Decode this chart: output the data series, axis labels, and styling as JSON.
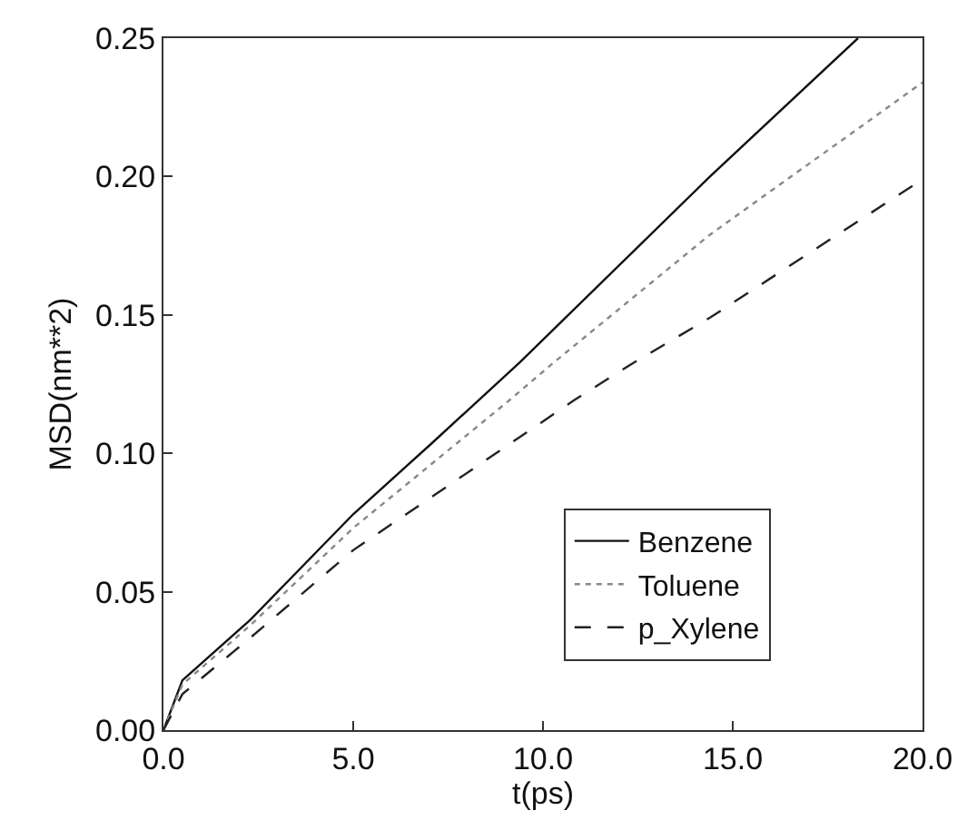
{
  "chart_data": {
    "type": "line",
    "xlabel": "t(ps)",
    "ylabel": "MSD(nm**2)",
    "series": [
      {
        "name": "Benzene",
        "color": "#111111",
        "line_style": "solid",
        "x": [
          0,
          0.5,
          2.3,
          5.0,
          7.1,
          9.4,
          14.4,
          18.3
        ],
        "values": [
          0,
          0.018,
          0.04,
          0.078,
          0.104,
          0.133,
          0.2,
          0.25
        ]
      },
      {
        "name": "Toluene",
        "color": "#888888",
        "line_style": "dotted",
        "x": [
          0,
          0.5,
          2.3,
          5.0,
          9.1,
          10.3,
          14.4,
          20.0
        ],
        "values": [
          0,
          0.0165,
          0.038,
          0.073,
          0.119,
          0.133,
          0.179,
          0.234
        ]
      },
      {
        "name": "p_Xylene",
        "color": "#222222",
        "line_style": "dashed",
        "x": [
          0,
          0.5,
          2.3,
          5.0,
          10.8,
          12.3,
          14.4,
          20.0
        ],
        "values": [
          0,
          0.013,
          0.0335,
          0.065,
          0.119,
          0.132,
          0.149,
          0.199
        ]
      }
    ],
    "xlim": [
      0,
      20
    ],
    "ylim": [
      0,
      0.25
    ],
    "xticks": [
      {
        "value": 0,
        "label": "0.0"
      },
      {
        "value": 5,
        "label": "5.0"
      },
      {
        "value": 10,
        "label": "10.0"
      },
      {
        "value": 15,
        "label": "15.0"
      },
      {
        "value": 20,
        "label": "20.0"
      }
    ],
    "yticks": [
      {
        "value": 0,
        "label": "0.00"
      },
      {
        "value": 0.05,
        "label": "0.05"
      },
      {
        "value": 0.1,
        "label": "0.10"
      },
      {
        "value": 0.15,
        "label": "0.15"
      },
      {
        "value": 0.2,
        "label": "0.20"
      },
      {
        "value": 0.25,
        "label": "0.25"
      }
    ],
    "legend": "bottom right",
    "marker": "none"
  }
}
